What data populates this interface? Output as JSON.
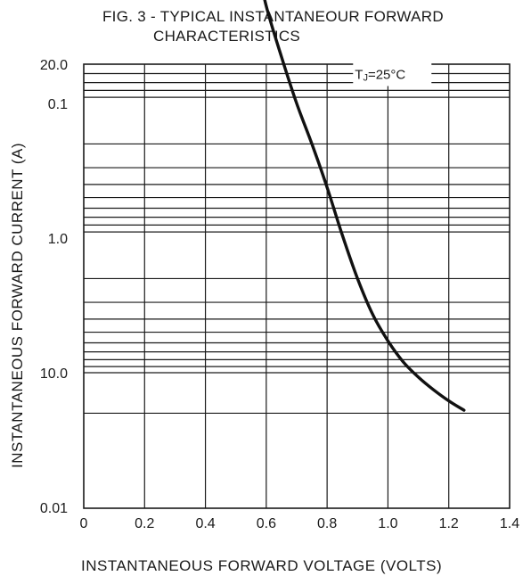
{
  "chart_data": {
    "type": "line",
    "title_line1": "FIG. 3 - TYPICAL INSTANTANEOUR FORWARD",
    "title_line2": "CHARACTERISTICS",
    "xlabel": "INSTANTANEOUS FORWARD VOLTAGE (VOLTS)",
    "ylabel": "INSTANTANEOUS FORWARD CURRENT (A)",
    "xlim": [
      0,
      1.4
    ],
    "ylim": [
      0.01,
      20
    ],
    "y_scale": "log",
    "grid": true,
    "x_ticks": [
      {
        "value": 0,
        "label": "0"
      },
      {
        "value": 0.2,
        "label": "0.2"
      },
      {
        "value": 0.4,
        "label": "0.4"
      },
      {
        "value": 0.6,
        "label": "0.6"
      },
      {
        "value": 0.8,
        "label": "0.8"
      },
      {
        "value": 1.0,
        "label": "1.0"
      },
      {
        "value": 1.2,
        "label": "1.2"
      },
      {
        "value": 1.4,
        "label": "1.4"
      }
    ],
    "y_ticks": [
      {
        "value": 0.01,
        "label": "0.01"
      },
      {
        "value": 0.1,
        "label": "0.1"
      },
      {
        "value": 1.0,
        "label": "1.0"
      },
      {
        "value": 10.0,
        "label": "10.0"
      },
      {
        "value": 20.0,
        "label": "20.0"
      }
    ],
    "series": [
      {
        "x": [
          0.575,
          0.6,
          0.65,
          0.7,
          0.75,
          0.8,
          0.85,
          0.9,
          0.95,
          1.0,
          1.05,
          1.1,
          1.15,
          1.2,
          1.25
        ],
        "y": [
          0.01,
          0.019,
          0.045,
          0.1,
          0.2,
          0.42,
          0.95,
          2.0,
          3.7,
          5.8,
          8.3,
          10.8,
          13.4,
          16.2,
          19.0
        ]
      }
    ],
    "annotation": {
      "prefix": "T",
      "subscript": "J",
      "text": "=25°C",
      "x": 0.9,
      "y": 0.06
    }
  }
}
